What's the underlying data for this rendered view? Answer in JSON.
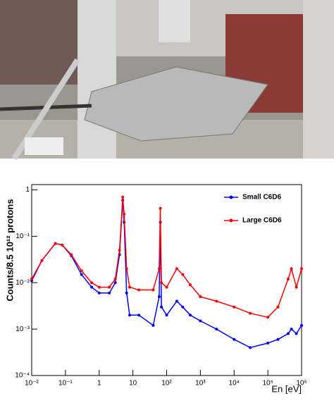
{
  "chart_data": {
    "type": "line",
    "x_label": "En [eV]",
    "y_label": "Counts/8.5 10¹² protons",
    "xscale": "log",
    "yscale": "log",
    "xlim": [
      0.01,
      1000000
    ],
    "ylim": [
      0.0001,
      1.3
    ],
    "xticks": [
      {
        "value": 0.01,
        "label": "10⁻²"
      },
      {
        "value": 0.1,
        "label": "10⁻¹"
      },
      1,
      10,
      {
        "value": 100,
        "label": "10²"
      },
      {
        "value": 1000,
        "label": "10³"
      },
      {
        "value": 10000,
        "label": "10⁴"
      },
      {
        "value": 100000,
        "label": "10⁵"
      },
      {
        "value": 1000000,
        "label": "10⁶"
      }
    ],
    "yticks": [
      {
        "value": 0.0001,
        "label": "10⁻⁴"
      },
      {
        "value": 0.001,
        "label": "10⁻³"
      },
      {
        "value": 0.01,
        "label": "10⁻²"
      },
      {
        "value": 0.1,
        "label": "10⁻¹"
      },
      1
    ],
    "legend": "upper right",
    "x": [
      0.01,
      0.02,
      0.05,
      0.08,
      0.15,
      0.3,
      0.6,
      1,
      2,
      3,
      4,
      5,
      5.5,
      6.5,
      8,
      15,
      40,
      60,
      65,
      70,
      100,
      200,
      300,
      500,
      1000,
      3000,
      10000,
      30000,
      100000,
      200000,
      400000,
      500000,
      700000,
      1000000
    ],
    "series": [
      {
        "name": "Small C6D6",
        "color": "#0000ff",
        "values": [
          0.011,
          0.03,
          0.07,
          0.065,
          0.038,
          0.015,
          0.008,
          0.006,
          0.006,
          0.01,
          0.04,
          0.6,
          0.2,
          0.006,
          0.002,
          0.002,
          0.0012,
          0.005,
          0.2,
          0.003,
          0.002,
          0.004,
          0.003,
          0.002,
          0.0015,
          0.001,
          0.0006,
          0.0004,
          0.0005,
          0.0006,
          0.0008,
          0.001,
          0.0008,
          0.0012
        ]
      },
      {
        "name": "Large C6D6",
        "color": "#ff0000",
        "values": [
          0.012,
          0.03,
          0.07,
          0.065,
          0.04,
          0.018,
          0.01,
          0.008,
          0.008,
          0.012,
          0.05,
          0.7,
          0.3,
          0.02,
          0.008,
          0.007,
          0.007,
          0.02,
          0.4,
          0.01,
          0.008,
          0.02,
          0.015,
          0.009,
          0.005,
          0.004,
          0.003,
          0.0022,
          0.0018,
          0.003,
          0.012,
          0.02,
          0.008,
          0.02
        ]
      }
    ]
  }
}
